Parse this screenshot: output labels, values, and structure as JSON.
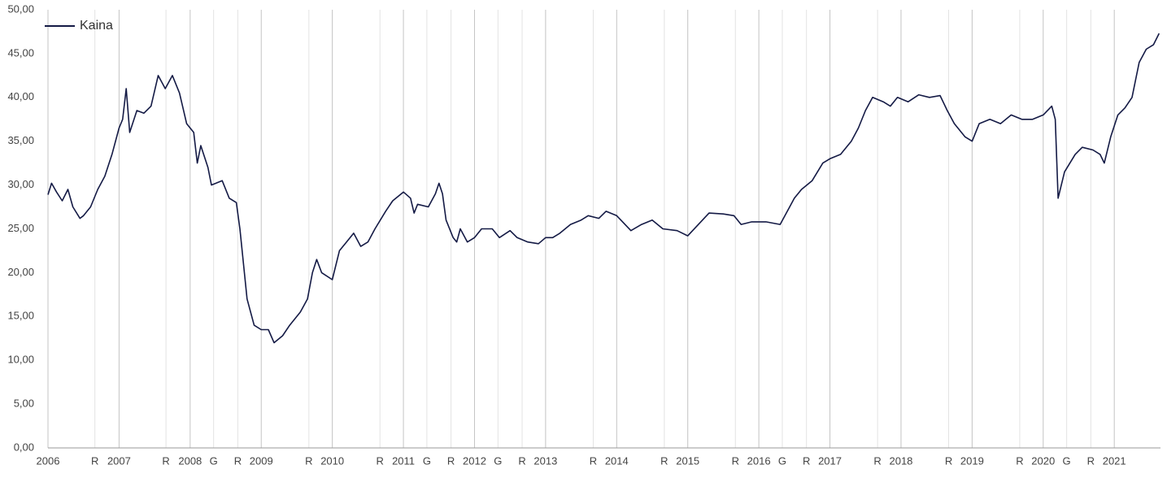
{
  "chart_data": {
    "type": "line",
    "xlim": [
      2006,
      2021.65
    ],
    "ylim": [
      0,
      50
    ],
    "yticks": [
      {
        "value": 0,
        "label": "0,00"
      },
      {
        "value": 5,
        "label": "5,00"
      },
      {
        "value": 10,
        "label": "10,00"
      },
      {
        "value": 15,
        "label": "15,00"
      },
      {
        "value": 20,
        "label": "20,00"
      },
      {
        "value": 25,
        "label": "25,00"
      },
      {
        "value": 30,
        "label": "30,00"
      },
      {
        "value": 35,
        "label": "35,00"
      },
      {
        "value": 40,
        "label": "40,00"
      },
      {
        "value": 45,
        "label": "45,00"
      },
      {
        "value": 50,
        "label": "50,00"
      }
    ],
    "xticks": [
      2006,
      {
        "value": 2006.66,
        "label": "R"
      },
      2007,
      {
        "value": 2007.66,
        "label": "R"
      },
      2008,
      {
        "value": 2008.33,
        "label": "G"
      },
      {
        "value": 2008.67,
        "label": "R"
      },
      2009,
      {
        "value": 2009.67,
        "label": "R"
      },
      2010,
      {
        "value": 2010.67,
        "label": "R"
      },
      2011,
      {
        "value": 2011.33,
        "label": "G"
      },
      {
        "value": 2011.67,
        "label": "R"
      },
      2012,
      {
        "value": 2012.33,
        "label": "G"
      },
      {
        "value": 2012.67,
        "label": "R"
      },
      2013,
      {
        "value": 2013.67,
        "label": "R"
      },
      2014,
      {
        "value": 2014.67,
        "label": "R"
      },
      2015,
      {
        "value": 2015.67,
        "label": "R"
      },
      2016,
      {
        "value": 2016.33,
        "label": "G"
      },
      {
        "value": 2016.67,
        "label": "R"
      },
      2017,
      {
        "value": 2017.67,
        "label": "R"
      },
      2018,
      {
        "value": 2018.67,
        "label": "R"
      },
      2019,
      {
        "value": 2019.67,
        "label": "R"
      },
      2020,
      {
        "value": 2020.33,
        "label": "G"
      },
      {
        "value": 2020.67,
        "label": "R"
      },
      2021
    ],
    "grid": true,
    "legend": "top-left",
    "x": [
      2006.0,
      2006.05,
      2006.12,
      2006.2,
      2006.28,
      2006.35,
      2006.45,
      2006.5,
      2006.6,
      2006.7,
      2006.8,
      2006.9,
      2007.0,
      2007.05,
      2007.1,
      2007.15,
      2007.25,
      2007.35,
      2007.45,
      2007.55,
      2007.65,
      2007.75,
      2007.85,
      2007.95,
      2008.05,
      2008.1,
      2008.15,
      2008.25,
      2008.3,
      2008.45,
      2008.55,
      2008.65,
      2008.7,
      2008.8,
      2008.9,
      2009.0,
      2009.1,
      2009.18,
      2009.3,
      2009.4,
      2009.55,
      2009.65,
      2009.72,
      2009.78,
      2009.85,
      2010.0,
      2010.1,
      2010.2,
      2010.3,
      2010.4,
      2010.5,
      2010.6,
      2010.75,
      2010.85,
      2011.0,
      2011.1,
      2011.15,
      2011.2,
      2011.35,
      2011.45,
      2011.5,
      2011.55,
      2011.6,
      2011.7,
      2011.75,
      2011.8,
      2011.9,
      2012.0,
      2012.1,
      2012.25,
      2012.35,
      2012.5,
      2012.6,
      2012.75,
      2012.9,
      2013.0,
      2013.1,
      2013.2,
      2013.35,
      2013.5,
      2013.6,
      2013.75,
      2013.85,
      2014.0,
      2014.2,
      2014.35,
      2014.5,
      2014.65,
      2014.85,
      2015.0,
      2015.15,
      2015.3,
      2015.5,
      2015.65,
      2015.75,
      2015.9,
      2016.1,
      2016.3,
      2016.4,
      2016.5,
      2016.6,
      2016.75,
      2016.9,
      2017.0,
      2017.15,
      2017.3,
      2017.4,
      2017.5,
      2017.6,
      2017.75,
      2017.85,
      2017.95,
      2018.1,
      2018.25,
      2018.4,
      2018.55,
      2018.65,
      2018.75,
      2018.9,
      2019.0,
      2019.1,
      2019.25,
      2019.4,
      2019.55,
      2019.7,
      2019.85,
      2020.0,
      2020.12,
      2020.17,
      2020.21,
      2020.3,
      2020.45,
      2020.55,
      2020.7,
      2020.8,
      2020.86,
      2020.95,
      2021.05,
      2021.15,
      2021.25,
      2021.35,
      2021.45,
      2021.55,
      2021.63
    ],
    "series": [
      {
        "name": "Kaina",
        "color": "#141a45",
        "values": [
          28.9,
          30.2,
          29.2,
          28.2,
          29.5,
          27.5,
          26.2,
          26.5,
          27.5,
          29.5,
          31.0,
          33.5,
          36.5,
          37.5,
          41.0,
          36.0,
          38.5,
          38.2,
          39.0,
          42.5,
          41.0,
          42.5,
          40.5,
          37.0,
          36.0,
          32.5,
          34.5,
          32.0,
          30.0,
          30.5,
          28.5,
          28.0,
          25.0,
          17.0,
          14.0,
          13.5,
          13.5,
          12.0,
          12.8,
          14.0,
          15.5,
          17.0,
          20.0,
          21.5,
          20.0,
          19.2,
          22.5,
          23.5,
          24.5,
          23.0,
          23.5,
          25.0,
          27.0,
          28.2,
          29.2,
          28.5,
          26.8,
          27.8,
          27.5,
          29.0,
          30.2,
          29.0,
          26.0,
          24.0,
          23.5,
          25.0,
          23.5,
          24.0,
          25.0,
          25.0,
          24.0,
          24.8,
          24.0,
          23.5,
          23.3,
          24.0,
          24.0,
          24.5,
          25.5,
          26.0,
          26.5,
          26.2,
          27.0,
          26.5,
          24.8,
          25.5,
          26.0,
          25.0,
          24.8,
          24.2,
          25.5,
          26.8,
          26.7,
          26.5,
          25.5,
          25.8,
          25.8,
          25.5,
          27.0,
          28.5,
          29.5,
          30.5,
          32.5,
          33.0,
          33.5,
          35.0,
          36.5,
          38.5,
          40.0,
          39.5,
          39.0,
          40.0,
          39.5,
          40.3,
          40.0,
          40.2,
          38.5,
          37.0,
          35.5,
          35.0,
          37.0,
          37.5,
          37.0,
          38.0,
          37.5,
          37.5,
          38.0,
          39.0,
          37.5,
          28.5,
          31.5,
          33.5,
          34.3,
          34.0,
          33.5,
          32.5,
          35.5,
          38.0,
          38.8,
          40.0,
          44.0,
          45.5,
          46.0,
          47.3
        ]
      }
    ]
  }
}
